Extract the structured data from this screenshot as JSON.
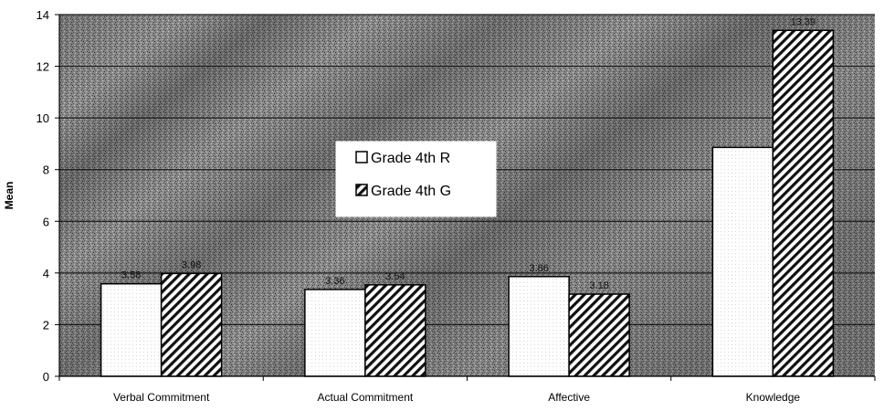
{
  "chart_data": {
    "type": "bar",
    "title": "",
    "xlabel": "",
    "ylabel": "Mean",
    "ylim": [
      0,
      14
    ],
    "yticks": [
      0,
      2,
      4,
      6,
      8,
      10,
      12,
      14
    ],
    "grid": true,
    "legend_position": "center",
    "categories": [
      "Verbal Commitment",
      "Actual Commitment",
      "Affective",
      "Knowledge"
    ],
    "series": [
      {
        "name": "Grade 4th R",
        "values": [
          3.58,
          3.36,
          3.86,
          8.86
        ],
        "labels": [
          "3.58",
          "3.36",
          "3.86",
          ""
        ],
        "fill": "#ffffff"
      },
      {
        "name": "Grade 4th G",
        "values": [
          3.98,
          3.54,
          3.18,
          13.39
        ],
        "labels": [
          "3.98",
          "3.54",
          "3.18",
          "13.39"
        ],
        "fill": "hatched"
      }
    ]
  },
  "colors": {
    "background": "#8f8f8f",
    "gridline": "#1a1a1a",
    "axis": "#000000",
    "bar_stroke": "#000000"
  }
}
